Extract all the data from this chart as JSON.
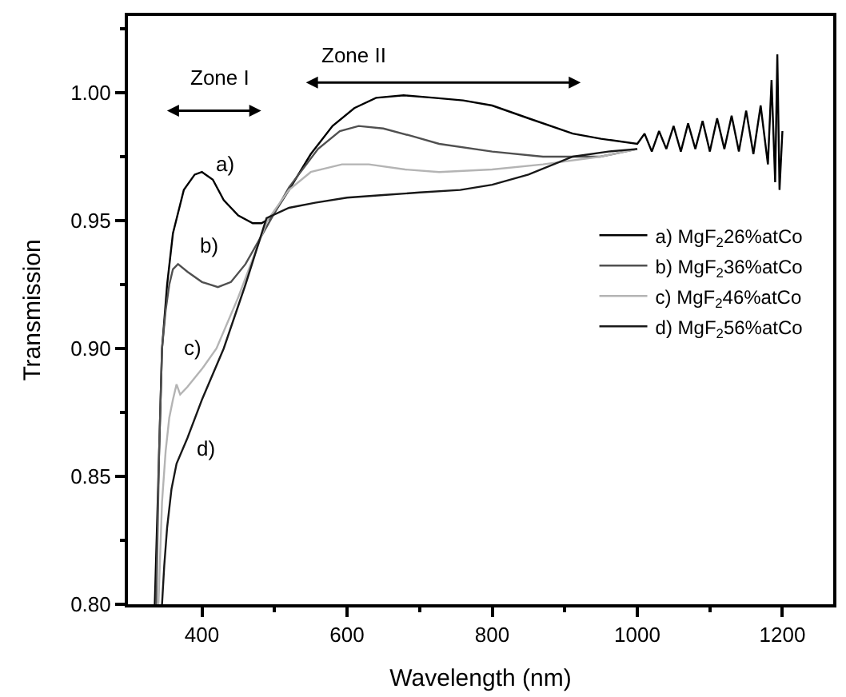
{
  "chart_data": {
    "type": "line",
    "xlabel": "Wavelength (nm)",
    "ylabel": "Transmission",
    "xlim": [
      298,
      1270
    ],
    "ylim": [
      0.8,
      1.03
    ],
    "xticks": [
      400,
      {
        "value": 500,
        "label": null
      },
      600,
      {
        "value": 700,
        "label": null
      },
      800,
      {
        "value": 900,
        "label": null
      },
      1000,
      {
        "value": 1100,
        "label": null
      },
      1200
    ],
    "yticks": [
      {
        "value": 0.8,
        "label": "0.80"
      },
      {
        "value": 0.825,
        "label": null
      },
      {
        "value": 0.85,
        "label": "0.85"
      },
      {
        "value": 0.875,
        "label": null
      },
      {
        "value": 0.9,
        "label": "0.90"
      },
      {
        "value": 0.925,
        "label": null
      },
      {
        "value": 0.95,
        "label": "0.95"
      },
      {
        "value": 0.975,
        "label": null
      },
      {
        "value": 1.0,
        "label": "1.00"
      },
      {
        "value": 1.025,
        "label": null
      }
    ],
    "legend": "right",
    "marker": "none",
    "line_style": "solid",
    "series": [
      {
        "name": "a) MgF$_{2}$26%atCo",
        "color": "#000000",
        "x": [
          335,
          340,
          345,
          352,
          360,
          375,
          390,
          400,
          415,
          430,
          450,
          470,
          482,
          495,
          520,
          550,
          580,
          610,
          640,
          678,
          720,
          760,
          800,
          850,
          911,
          950,
          1000,
          1010,
          1020,
          1030,
          1040,
          1050,
          1060,
          1070,
          1080,
          1090,
          1100,
          1110,
          1120,
          1130,
          1140,
          1150,
          1160,
          1170,
          1180,
          1185,
          1190,
          1193,
          1196,
          1200
        ],
        "values": [
          0.8,
          0.85,
          0.9,
          0.925,
          0.945,
          0.962,
          0.968,
          0.969,
          0.966,
          0.958,
          0.952,
          0.949,
          0.949,
          0.951,
          0.962,
          0.976,
          0.987,
          0.994,
          0.998,
          0.999,
          0.998,
          0.997,
          0.995,
          0.99,
          0.984,
          0.982,
          0.98,
          0.984,
          0.977,
          0.985,
          0.978,
          0.987,
          0.977,
          0.988,
          0.978,
          0.989,
          0.977,
          0.99,
          0.978,
          0.991,
          0.977,
          0.993,
          0.976,
          0.995,
          0.972,
          1.005,
          0.965,
          1.015,
          0.962,
          0.985
        ]
      },
      {
        "name": "b) MgF$_{2}$36%atCo",
        "color": "#505050",
        "x": [
          337,
          341,
          345,
          350,
          355,
          360,
          367,
          380,
          400,
          422,
          440,
          460,
          490,
          520,
          560,
          590,
          616,
          650,
          690,
          727,
          800,
          870,
          949,
          1000
        ],
        "values": [
          0.8,
          0.86,
          0.9,
          0.915,
          0.925,
          0.931,
          0.933,
          0.93,
          0.926,
          0.924,
          0.926,
          0.933,
          0.948,
          0.963,
          0.978,
          0.985,
          0.987,
          0.986,
          0.983,
          0.98,
          0.977,
          0.975,
          0.975,
          0.978
        ]
      },
      {
        "name": "c) MgF$_{2}$46%atCo",
        "color": "#b4b4b4",
        "x": [
          340,
          345,
          350,
          355,
          360,
          365,
          370,
          380,
          400,
          420,
          450,
          490,
          520,
          550,
          593,
          630,
          680,
          727,
          800,
          870,
          949,
          1000
        ],
        "values": [
          0.8,
          0.84,
          0.86,
          0.873,
          0.88,
          0.886,
          0.882,
          0.885,
          0.892,
          0.9,
          0.92,
          0.95,
          0.962,
          0.969,
          0.972,
          0.972,
          0.97,
          0.969,
          0.97,
          0.972,
          0.975,
          0.978
        ]
      },
      {
        "name": "d) MgF$_{2}$56%atCo",
        "color": "#181818",
        "x": [
          345,
          348,
          352,
          358,
          365,
          380,
          400,
          430,
          460,
          489,
          520,
          556,
          600,
          650,
          700,
          756,
          800,
          850,
          911,
          960,
          1000
        ],
        "values": [
          0.8,
          0.815,
          0.83,
          0.845,
          0.855,
          0.865,
          0.88,
          0.9,
          0.925,
          0.951,
          0.955,
          0.957,
          0.959,
          0.96,
          0.961,
          0.962,
          0.964,
          0.968,
          0.975,
          0.977,
          0.978
        ]
      }
    ],
    "annotations": [
      "a)",
      "b)",
      "c)",
      "d)",
      "Zone I",
      "Zone II"
    ]
  }
}
